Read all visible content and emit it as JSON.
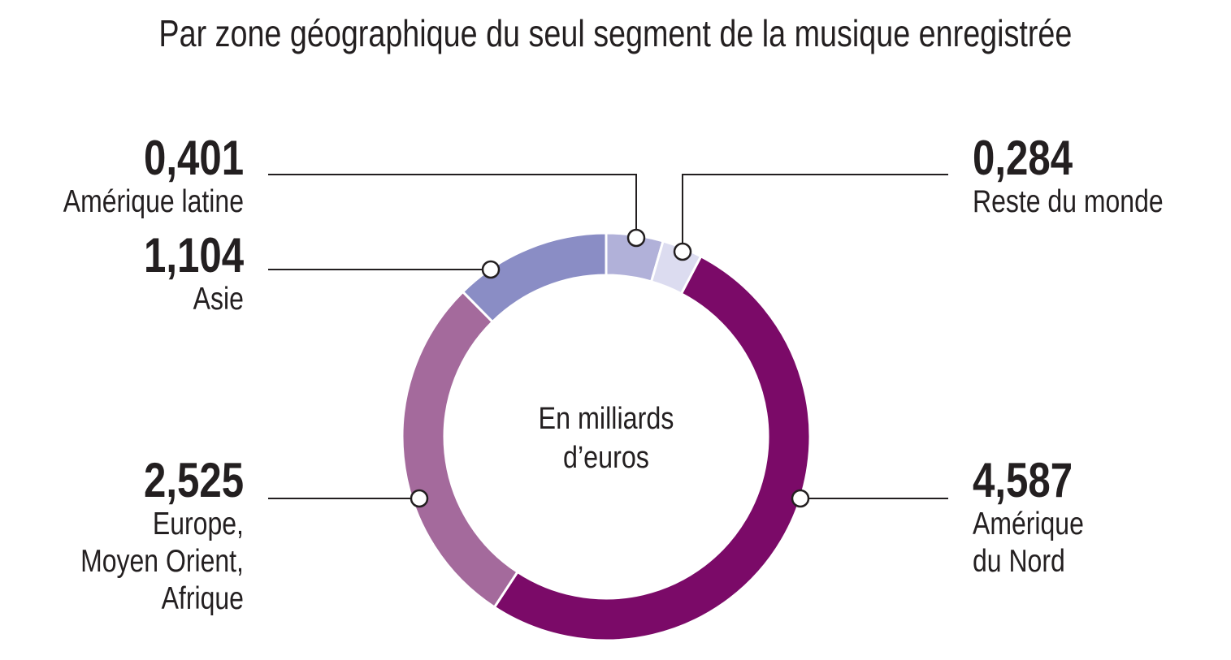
{
  "chart_data": {
    "type": "donut",
    "title": "Par zone géographique du seul segment de la musique enregistrée",
    "center_label": "En milliards\nd’euros",
    "categories": [
      "Amérique latine",
      "Reste du monde",
      "Amérique\ndu Nord",
      "Europe,\nMoyen Orient,\nAfrique",
      "Asie"
    ],
    "values": [
      0.401,
      0.284,
      4.587,
      2.525,
      1.104
    ],
    "value_labels": [
      "0,401",
      "0,284",
      "4,587",
      "2,525",
      "1,104"
    ],
    "colors": [
      "#b1b1d9",
      "#dcdcf0",
      "#7b0a68",
      "#a46a9c",
      "#8a8dc5"
    ]
  }
}
